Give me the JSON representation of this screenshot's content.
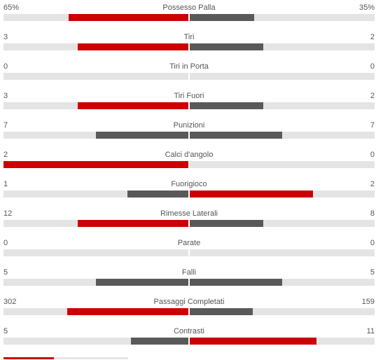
{
  "colors": {
    "leader": "#cc0000",
    "trailer": "#595959",
    "track": "#e4e4e4"
  },
  "stats": [
    {
      "label": "Possesso Palla",
      "home": "65%",
      "away": "35%",
      "home_value": 65,
      "away_value": 35
    },
    {
      "label": "Tiri",
      "home": "3",
      "away": "2",
      "home_value": 3,
      "away_value": 2
    },
    {
      "label": "Tiri in Porta",
      "home": "0",
      "away": "0",
      "home_value": 0,
      "away_value": 0
    },
    {
      "label": "Tiri Fuori",
      "home": "3",
      "away": "2",
      "home_value": 3,
      "away_value": 2
    },
    {
      "label": "Punizioni",
      "home": "7",
      "away": "7",
      "home_value": 7,
      "away_value": 7
    },
    {
      "label": "Calci d'angolo",
      "home": "2",
      "away": "0",
      "home_value": 2,
      "away_value": 0
    },
    {
      "label": "Fuorigioco",
      "home": "1",
      "away": "2",
      "home_value": 1,
      "away_value": 2
    },
    {
      "label": "Rimesse Laterali",
      "home": "12",
      "away": "8",
      "home_value": 12,
      "away_value": 8
    },
    {
      "label": "Parate",
      "home": "0",
      "away": "0",
      "home_value": 0,
      "away_value": 0
    },
    {
      "label": "Falli",
      "home": "5",
      "away": "5",
      "home_value": 5,
      "away_value": 5
    },
    {
      "label": "Passaggi Completati",
      "home": "302",
      "away": "159",
      "home_value": 302,
      "away_value": 159
    },
    {
      "label": "Contrasti",
      "home": "5",
      "away": "11",
      "home_value": 5,
      "away_value": 11
    }
  ]
}
